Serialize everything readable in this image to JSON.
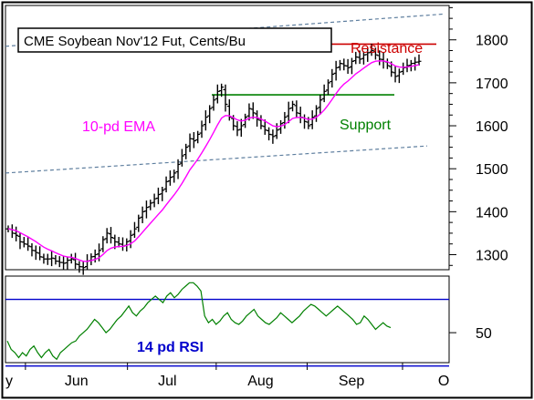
{
  "chart_data": [
    {
      "type": "ohlc",
      "title": "CME Soybean Nov'12 Fut, Cents/Bu",
      "y_ticks": [
        1300,
        1400,
        1500,
        1600,
        1700,
        1800
      ],
      "ylim": [
        1265,
        1880
      ],
      "x_ticks": [
        "y",
        "Jun",
        "Jul",
        "Aug",
        "Sep",
        "O"
      ],
      "grid": false,
      "annotations": {
        "resistance": {
          "label": "Resistance",
          "value": 1790,
          "color": "#cc0000"
        },
        "support": {
          "label": "Support",
          "value": 1672,
          "color": "#008000"
        },
        "ema": {
          "label": "10-pd EMA",
          "color": "#ff00ff"
        }
      },
      "trend_channel": {
        "upper": [
          1785,
          1860
        ],
        "lower": [
          1490,
          1553
        ],
        "color": "#5f7f9f"
      },
      "closes": [
        1360,
        1350,
        1345,
        1330,
        1325,
        1320,
        1310,
        1305,
        1295,
        1290,
        1290,
        1292,
        1285,
        1282,
        1280,
        1287,
        1290,
        1278,
        1272,
        1270,
        1285,
        1295,
        1300,
        1310,
        1335,
        1350,
        1340,
        1330,
        1325,
        1320,
        1330,
        1345,
        1360,
        1385,
        1400,
        1410,
        1420,
        1430,
        1440,
        1450,
        1470,
        1480,
        1490,
        1510,
        1530,
        1550,
        1570,
        1565,
        1580,
        1600,
        1620,
        1640,
        1660,
        1680,
        1690,
        1650,
        1620,
        1600,
        1590,
        1600,
        1620,
        1640,
        1630,
        1615,
        1600,
        1590,
        1580,
        1575,
        1590,
        1605,
        1620,
        1640,
        1650,
        1630,
        1620,
        1610,
        1600,
        1620,
        1640,
        1660,
        1680,
        1700,
        1720,
        1735,
        1745,
        1740,
        1735,
        1750,
        1760,
        1755,
        1765,
        1770,
        1775,
        1765,
        1755,
        1750,
        1740,
        1725,
        1715,
        1725,
        1735,
        1740,
        1745,
        1748,
        1750
      ]
    },
    {
      "type": "line",
      "name": "14 pd RSI",
      "y_ticks": [
        50
      ],
      "ylim": [
        32,
        84
      ],
      "bands": [
        70,
        30
      ],
      "color": "#008000",
      "values": [
        45,
        40,
        38,
        35,
        38,
        36,
        40,
        42,
        38,
        35,
        38,
        40,
        36,
        34,
        38,
        40,
        42,
        44,
        45,
        48,
        50,
        52,
        55,
        58,
        56,
        53,
        50,
        52,
        55,
        58,
        60,
        63,
        66,
        62,
        60,
        63,
        65,
        68,
        70,
        72,
        70,
        68,
        72,
        74,
        71,
        73,
        76,
        78,
        80,
        80,
        78,
        75,
        60,
        56,
        58,
        55,
        57,
        60,
        62,
        58,
        56,
        55,
        57,
        60,
        62,
        64,
        60,
        58,
        56,
        55,
        57,
        59,
        62,
        60,
        58,
        56,
        58,
        60,
        63,
        65,
        67,
        66,
        64,
        62,
        60,
        62,
        64,
        66,
        64,
        62,
        60,
        58,
        55,
        56,
        60,
        58,
        55,
        52,
        54,
        56,
        54,
        53
      ],
      "label": "14 pd RSI"
    }
  ]
}
